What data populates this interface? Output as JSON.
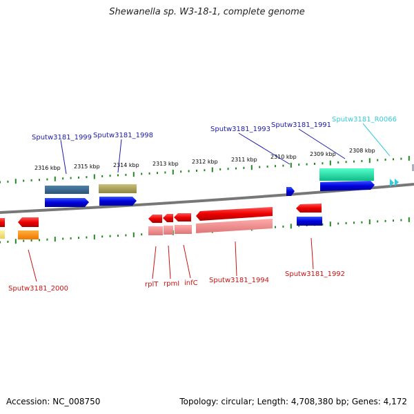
{
  "title": "Shewanella sp. W3-18-1, complete genome",
  "footer": {
    "accession": "Accession: NC_008750",
    "topology": "Topology: circular; Length: 4,708,380 bp; Genes: 4,172"
  },
  "colors": {
    "forward_blue": "#0000dd",
    "reverse_red": "#ee0000",
    "rna_cyan": "#33ccdd",
    "scale_green": "#228822",
    "backbone_gray": "#777777",
    "label_blue": "#1a1aaa",
    "label_red": "#cc1111"
  },
  "kbp_labels": [
    "2316 kbp",
    "2315 kbp",
    "2314 kbp",
    "2313 kbp",
    "2312 kbp",
    "2311 kbp",
    "2310 kbp",
    "2309 kbp",
    "2308 kbp"
  ],
  "gene_labels_top": [
    "Sputw3181_1999",
    "Sputw3181_1998",
    "Sputw3181_1993",
    "Sputw3181_1991",
    "Sputw3181_R0066"
  ],
  "gene_labels_bottom": [
    "Sputw3181_2000",
    "rplT",
    "rpmI",
    "infC",
    "Sputw3181_1994",
    "Sputw3181_1992"
  ]
}
